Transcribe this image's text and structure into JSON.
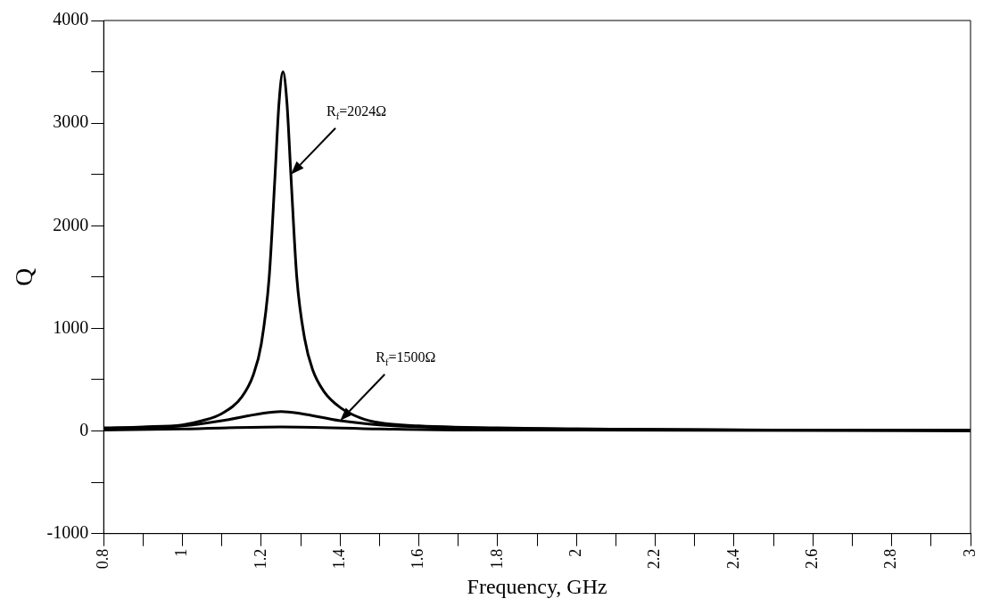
{
  "chart_data": {
    "type": "line",
    "xlabel": "Frequency, GHz",
    "ylabel": "Q",
    "xlim": [
      0.8,
      3.0
    ],
    "ylim": [
      -1000,
      4000
    ],
    "xticks": [
      0.8,
      {
        "value": 0.9,
        "label": null
      },
      1.0,
      {
        "value": 1.1,
        "label": null
      },
      1.2,
      {
        "value": 1.3,
        "label": null
      },
      1.4,
      {
        "value": 1.5,
        "label": null
      },
      1.6,
      {
        "value": 1.7,
        "label": null
      },
      1.8,
      {
        "value": 1.9,
        "label": null
      },
      2.0,
      {
        "value": 2.1,
        "label": null
      },
      2.2,
      {
        "value": 2.3,
        "label": null
      },
      2.4,
      {
        "value": 2.5,
        "label": null
      },
      2.6,
      {
        "value": 2.7,
        "label": null
      },
      2.8,
      {
        "value": 2.9,
        "label": null
      },
      3.0
    ],
    "yticks": [
      -1000,
      {
        "value": -500,
        "label": null
      },
      0,
      {
        "value": 500,
        "label": null
      },
      1000,
      {
        "value": 1500,
        "label": null
      },
      2000,
      {
        "value": 2500,
        "label": null
      },
      3000,
      {
        "value": 3500,
        "label": null
      },
      4000
    ],
    "grid": false,
    "legend": false,
    "marker": "none",
    "line_style": "solid",
    "series": [
      {
        "name": "R$_{f}$=2024Ω",
        "color": "#000000",
        "x": [
          0.8,
          0.9,
          1.0,
          1.05,
          1.1,
          1.15,
          1.18,
          1.2,
          1.22,
          1.235,
          1.245,
          1.255,
          1.265,
          1.275,
          1.29,
          1.31,
          1.33,
          1.36,
          1.4,
          1.45,
          1.5,
          1.6,
          1.8,
          2.0,
          2.5,
          3.0
        ],
        "values": [
          30,
          40,
          60,
          100,
          170,
          330,
          550,
          850,
          1500,
          2500,
          3200,
          3500,
          3200,
          2500,
          1500,
          900,
          600,
          380,
          230,
          130,
          80,
          50,
          30,
          20,
          10,
          10
        ]
      },
      {
        "name": "R$_{f}$=1500Ω",
        "color": "#000000",
        "x": [
          0.8,
          1.0,
          1.1,
          1.2,
          1.25,
          1.3,
          1.4,
          1.5,
          1.7,
          2.0,
          2.5
        ],
        "values": [
          20,
          50,
          100,
          170,
          190,
          170,
          100,
          60,
          30,
          20,
          10
        ]
      },
      {
        "color": "#000000",
        "x": [
          0.8,
          1.0,
          1.25,
          1.5,
          1.7,
          2.0,
          3.0
        ],
        "values": [
          10,
          20,
          40,
          20,
          10,
          10,
          0
        ]
      }
    ]
  }
}
